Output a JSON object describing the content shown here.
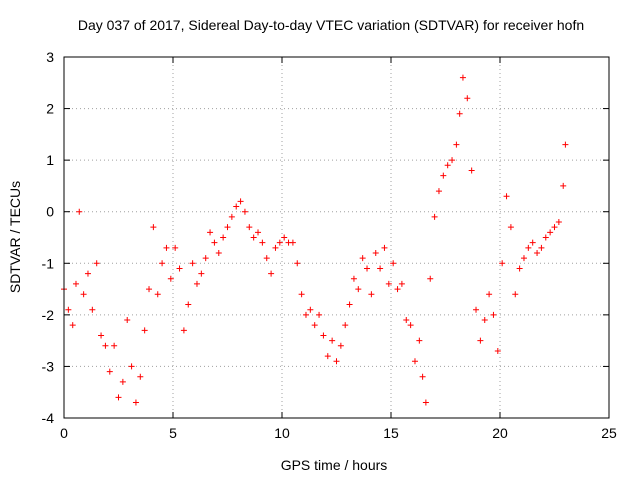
{
  "chart_data": {
    "type": "scatter",
    "title": "Day 037 of 2017, Sidereal Day-to-day VTEC variation (SDTVAR) for receiver hofn",
    "xlabel": "GPS time / hours",
    "ylabel": "SDTVAR / TECUs",
    "xlim": [
      0,
      25
    ],
    "ylim": [
      -4,
      3
    ],
    "x_ticks": [
      0,
      5,
      10,
      15,
      20,
      25
    ],
    "x_tick_labels": [
      "0",
      "5",
      "10",
      "15",
      "20",
      "25"
    ],
    "y_ticks": [
      -4,
      -3,
      -2,
      -1,
      0,
      1,
      2,
      3
    ],
    "y_tick_labels": [
      "-4",
      "-3",
      "-2",
      "-1",
      "0",
      "1",
      "2",
      "3"
    ],
    "grid": true,
    "marker": "+",
    "color": "#ff0000",
    "series": [
      {
        "name": "SDTVAR",
        "x": [
          0.0,
          0.2,
          0.4,
          0.55,
          0.7,
          0.9,
          1.1,
          1.3,
          1.5,
          1.7,
          1.9,
          2.1,
          2.3,
          2.5,
          2.7,
          2.9,
          3.1,
          3.3,
          3.5,
          3.7,
          3.9,
          4.1,
          4.3,
          4.5,
          4.7,
          4.9,
          5.1,
          5.3,
          5.5,
          5.7,
          5.9,
          6.1,
          6.3,
          6.5,
          6.7,
          6.9,
          7.1,
          7.3,
          7.5,
          7.7,
          7.9,
          8.1,
          8.3,
          8.5,
          8.7,
          8.9,
          9.1,
          9.3,
          9.5,
          9.7,
          9.9,
          10.1,
          10.3,
          10.5,
          10.7,
          10.9,
          11.1,
          11.3,
          11.5,
          11.7,
          11.9,
          12.1,
          12.3,
          12.5,
          12.7,
          12.9,
          13.1,
          13.3,
          13.5,
          13.7,
          13.9,
          14.1,
          14.3,
          14.5,
          14.7,
          14.9,
          15.1,
          15.3,
          15.5,
          15.7,
          15.9,
          16.1,
          16.3,
          16.45,
          16.6,
          16.8,
          17.0,
          17.2,
          17.4,
          17.6,
          17.8,
          18.0,
          18.15,
          18.3,
          18.5,
          18.7,
          18.9,
          19.1,
          19.3,
          19.5,
          19.7,
          19.9,
          20.1,
          20.3,
          20.5,
          20.7,
          20.9,
          21.1,
          21.3,
          21.5,
          21.7,
          21.9,
          22.1,
          22.3,
          22.5,
          22.7,
          22.9,
          23.0
        ],
        "y": [
          -1.5,
          -1.9,
          -2.2,
          -1.4,
          0.0,
          -1.6,
          -1.2,
          -1.9,
          -1.0,
          -2.4,
          -2.6,
          -3.1,
          -2.6,
          -3.6,
          -3.3,
          -2.1,
          -3.0,
          -3.7,
          -3.2,
          -2.3,
          -1.5,
          -0.3,
          -1.6,
          -1.0,
          -0.7,
          -1.3,
          -0.7,
          -1.1,
          -2.3,
          -1.8,
          -1.0,
          -1.4,
          -1.2,
          -0.9,
          -0.4,
          -0.6,
          -0.8,
          -0.5,
          -0.3,
          -0.1,
          0.1,
          0.2,
          0.0,
          -0.3,
          -0.5,
          -0.4,
          -0.6,
          -0.9,
          -1.2,
          -0.7,
          -0.6,
          -0.5,
          -0.6,
          -0.6,
          -1.0,
          -1.6,
          -2.0,
          -1.9,
          -2.2,
          -2.0,
          -2.4,
          -2.8,
          -2.5,
          -2.9,
          -2.6,
          -2.2,
          -1.8,
          -1.3,
          -1.5,
          -0.9,
          -1.1,
          -1.6,
          -0.8,
          -1.1,
          -0.7,
          -1.4,
          -1.0,
          -1.5,
          -1.4,
          -2.1,
          -2.2,
          -2.9,
          -2.5,
          -3.2,
          -3.7,
          -1.3,
          -0.1,
          0.4,
          0.7,
          0.9,
          1.0,
          1.3,
          1.9,
          2.6,
          2.2,
          0.8,
          -1.9,
          -2.5,
          -2.1,
          -1.6,
          -2.0,
          -2.7,
          -1.0,
          0.3,
          -0.3,
          -1.6,
          -1.1,
          -0.9,
          -0.7,
          -0.6,
          -0.8,
          -0.7,
          -0.5,
          -0.4,
          -0.3,
          -0.2,
          0.5,
          1.3
        ]
      }
    ]
  }
}
